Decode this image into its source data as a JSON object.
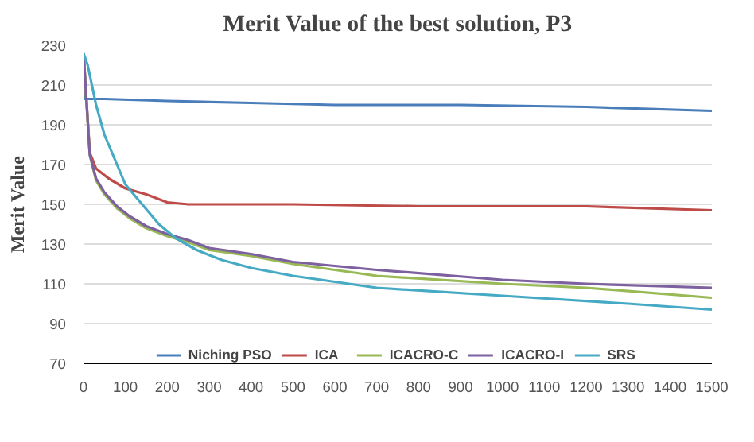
{
  "chart_data": {
    "type": "line",
    "title": "Merit Value of the best solution, P3",
    "ylabel": "Merit Value",
    "xlim": [
      0,
      1500
    ],
    "xticks": [
      0,
      100,
      200,
      300,
      400,
      500,
      600,
      700,
      800,
      900,
      1000,
      1100,
      1200,
      1300,
      1400,
      1500
    ],
    "ylim": [
      70,
      230
    ],
    "yticks": [
      70,
      90,
      110,
      130,
      150,
      170,
      190,
      210,
      230
    ],
    "grid": "y",
    "legend": "bottom",
    "marker": "none",
    "line_style": "solid",
    "series": [
      {
        "name": "Niching PSO",
        "color": "#4a7ebb",
        "x": [
          0,
          3,
          50,
          200,
          400,
          600,
          900,
          1200,
          1500
        ],
        "values": [
          226,
          203,
          203,
          202,
          201,
          200,
          200,
          199,
          197
        ]
      },
      {
        "name": "ICA",
        "color": "#be4b48",
        "x": [
          0,
          15,
          30,
          60,
          100,
          150,
          200,
          250,
          500,
          800,
          1200,
          1500
        ],
        "values": [
          226,
          176,
          168,
          163,
          158,
          155,
          151,
          150,
          150,
          149,
          149,
          147
        ]
      },
      {
        "name": "ICACRO-C",
        "color": "#98b954",
        "x": [
          0,
          15,
          30,
          50,
          80,
          110,
          150,
          200,
          250,
          300,
          400,
          500,
          700,
          1000,
          1200,
          1500
        ],
        "values": [
          226,
          175,
          162,
          155,
          148,
          143,
          138,
          134,
          131,
          127,
          124,
          120,
          114,
          110,
          108,
          103
        ]
      },
      {
        "name": "ICACRO-I",
        "color": "#7d60a0",
        "x": [
          0,
          15,
          30,
          50,
          80,
          110,
          150,
          200,
          250,
          300,
          400,
          500,
          700,
          1000,
          1200,
          1500
        ],
        "values": [
          226,
          175,
          163,
          156,
          149,
          144,
          139,
          135,
          132,
          128,
          125,
          121,
          117,
          112,
          110,
          108
        ]
      },
      {
        "name": "SRS",
        "color": "#46aac5",
        "x": [
          0,
          10,
          30,
          50,
          80,
          100,
          140,
          180,
          220,
          270,
          330,
          400,
          500,
          600,
          700,
          1000,
          1300,
          1500
        ],
        "values": [
          226,
          220,
          200,
          185,
          170,
          160,
          150,
          140,
          133,
          127,
          122,
          118,
          114,
          111,
          108,
          104,
          100,
          97
        ]
      }
    ]
  }
}
